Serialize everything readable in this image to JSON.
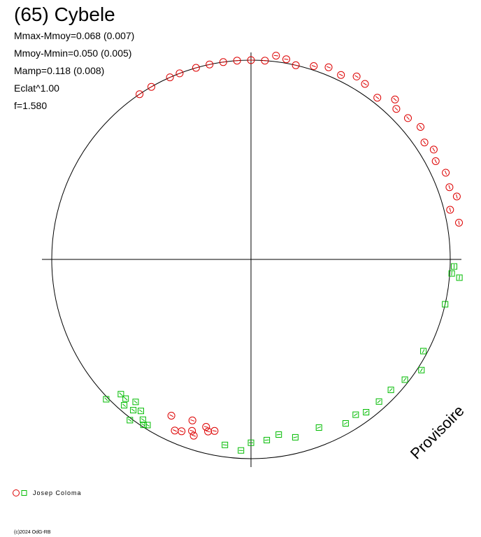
{
  "title": "(65) Cybele",
  "stats": [
    "Mmax-Mmoy=0.068 (0.007)",
    "Mmoy-Mmin=0.050 (0.005)",
    "Mamp=0.118 (0.008)",
    "Eclat^1.00",
    "f=1.580"
  ],
  "watermark": "Provisoire",
  "legend": {
    "label": "Josep Coloma"
  },
  "copyright": "(c)2024 OdG-RB",
  "colors": {
    "red": "#dd0000",
    "green": "#00bb00",
    "axes": "#000000"
  },
  "chart_data": {
    "type": "scatter",
    "polar": true,
    "period_factor": 1.58,
    "series": [
      {
        "name": "Josep Coloma",
        "color": "#dd0000",
        "marker": "circle",
        "angle_deg": [
          90.0,
          94.0,
          98.0,
          102.0,
          106.0,
          111.0,
          114.0,
          120.0,
          124.0,
          86.0,
          83.0,
          80.0,
          77.0,
          72.0,
          68.0,
          64.0,
          60.0,
          57.0,
          52.0,
          48.0,
          46.0,
          42.0,
          38.0,
          34.0,
          31.0,
          28.0,
          24.0,
          20.0,
          17.0,
          14.0,
          10.0,
          243.0,
          246.0,
          248.0,
          250.0,
          251.0,
          252.0,
          255.0,
          256.0,
          258.0
        ],
        "radius": [
          1.0,
          1.0,
          1.0,
          1.0,
          1.0,
          1.0,
          1.0,
          1.0,
          1.0,
          1.0,
          1.03,
          1.02,
          1.0,
          1.02,
          1.04,
          1.03,
          1.06,
          1.05,
          1.03,
          1.08,
          1.05,
          1.06,
          1.08,
          1.05,
          1.07,
          1.05,
          1.07,
          1.06,
          1.08,
          1.03,
          1.06,
          0.88,
          0.94,
          0.93,
          0.86,
          0.91,
          0.93,
          0.87,
          0.89,
          0.88
        ]
      },
      {
        "name": "Josep Coloma",
        "color": "#00bb00",
        "marker": "square",
        "angle_deg": [
          358.0,
          356.0,
          355.0,
          347.0,
          332.0,
          327.0,
          322.0,
          317.0,
          312.0,
          307.0,
          304.0,
          300.0,
          292.0,
          284.0,
          279.0,
          275.0,
          270.0,
          267.0,
          262.0,
          228.0,
          226.0,
          229.0,
          231.0,
          224.0,
          232.0,
          234.0,
          233.0,
          236.0,
          237.0,
          238.0
        ],
        "radius": [
          1.02,
          1.01,
          1.05,
          1.0,
          0.98,
          1.02,
          0.98,
          0.96,
          0.96,
          0.96,
          0.94,
          0.95,
          0.91,
          0.92,
          0.89,
          0.91,
          0.92,
          0.96,
          0.94,
          0.94,
          0.94,
          0.97,
          0.92,
          1.01,
          0.96,
          0.94,
          1.01,
          0.97,
          0.99,
          0.98
        ]
      }
    ],
    "axes": {
      "x_range": [
        -1,
        1
      ],
      "y_range": [
        -1,
        1
      ],
      "reference_circle": true
    },
    "legend_position": "bottom-left"
  }
}
